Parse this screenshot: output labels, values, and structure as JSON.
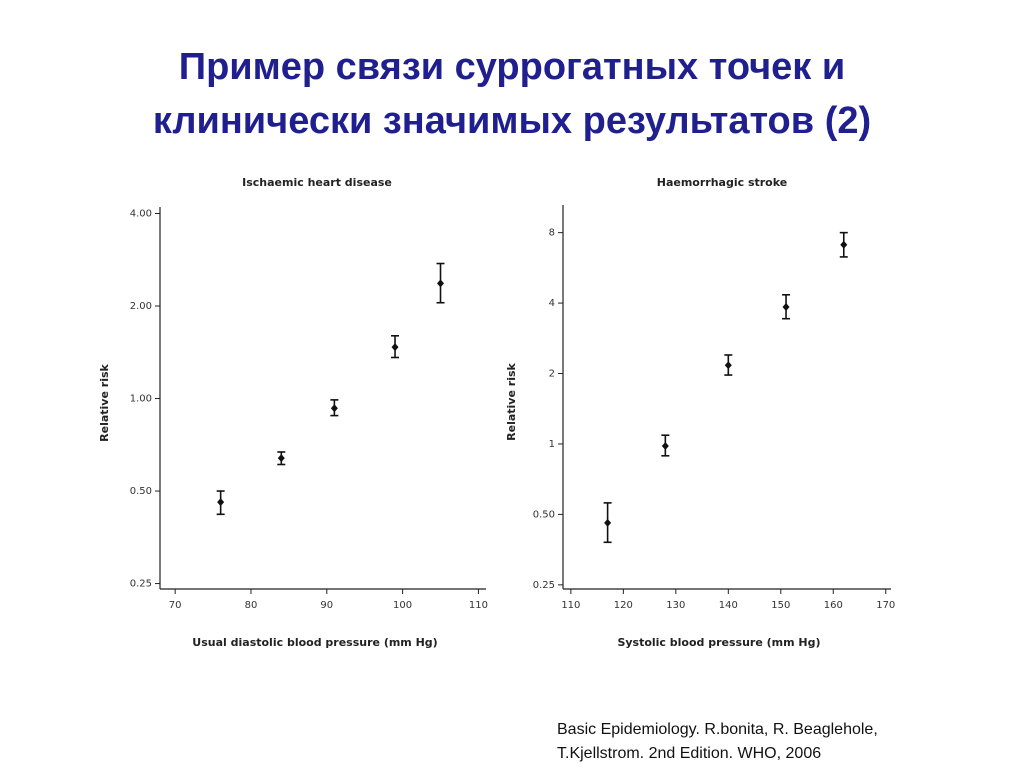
{
  "slide": {
    "title_line1": "Пример связи суррогатных точек и",
    "title_line2": "клинически значимых результатов (2)",
    "citation_line1": "Basic Epidemiology. R.bonita, R. Beaglehole,",
    "citation_line2": "T.Kjellstrom. 2nd Edition. WHO, 2006"
  },
  "chart_data": [
    {
      "type": "scatter",
      "title": "Ischaemic heart disease",
      "xlabel": "Usual diastolic blood pressure (mm Hg)",
      "ylabel": "Relative risk",
      "x_scale": "linear",
      "y_scale": "log",
      "xlim": [
        68,
        111
      ],
      "ylim": [
        0.24,
        4.2
      ],
      "x_ticks": [
        70,
        80,
        90,
        100,
        110
      ],
      "x_tick_labels": [
        "70",
        "80",
        "90",
        "100",
        "110"
      ],
      "y_ticks": [
        0.25,
        0.5,
        1.0,
        2.0,
        4.0
      ],
      "y_tick_labels": [
        "0.25",
        "0.50",
        "1.00",
        "2.00",
        "4.00"
      ],
      "points": [
        {
          "x": 76,
          "y": 0.46,
          "low": 0.42,
          "high": 0.5
        },
        {
          "x": 84,
          "y": 0.64,
          "low": 0.61,
          "high": 0.67
        },
        {
          "x": 91,
          "y": 0.93,
          "low": 0.88,
          "high": 0.99
        },
        {
          "x": 99,
          "y": 1.47,
          "low": 1.36,
          "high": 1.6
        },
        {
          "x": 105,
          "y": 2.37,
          "low": 2.05,
          "high": 2.75
        }
      ]
    },
    {
      "type": "scatter",
      "title": "Haemorrhagic stroke",
      "xlabel": "Systolic blood pressure (mm Hg)",
      "ylabel": "Relative risk",
      "x_scale": "linear",
      "y_scale": "log",
      "xlim": [
        108.5,
        171
      ],
      "ylim": [
        0.24,
        10.5
      ],
      "x_ticks": [
        110,
        120,
        130,
        140,
        150,
        160,
        170
      ],
      "x_tick_labels": [
        "110",
        "120",
        "130",
        "140",
        "150",
        "160",
        "170"
      ],
      "y_ticks": [
        0.25,
        0.5,
        1,
        2,
        4,
        8
      ],
      "y_tick_labels": [
        "0.25",
        "0.50",
        "1",
        "2",
        "4",
        "8"
      ],
      "points": [
        {
          "x": 117,
          "y": 0.46,
          "low": 0.38,
          "high": 0.56
        },
        {
          "x": 128,
          "y": 0.98,
          "low": 0.89,
          "high": 1.09
        },
        {
          "x": 140,
          "y": 2.17,
          "low": 1.97,
          "high": 2.4
        },
        {
          "x": 151,
          "y": 3.85,
          "low": 3.43,
          "high": 4.34
        },
        {
          "x": 162,
          "y": 7.1,
          "low": 6.3,
          "high": 8.0
        }
      ]
    }
  ]
}
